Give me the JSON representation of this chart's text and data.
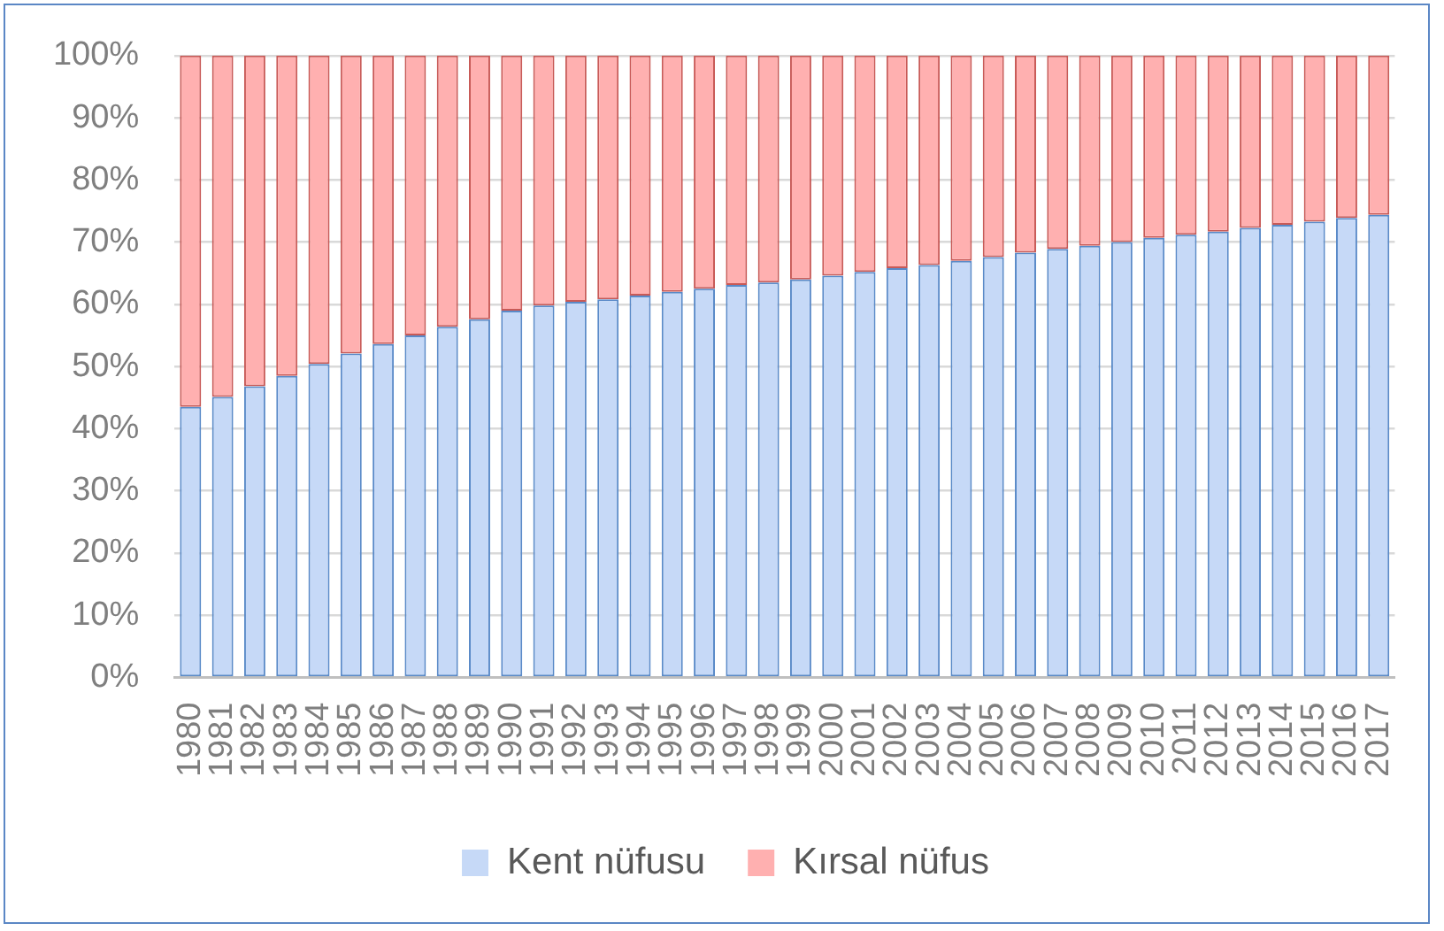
{
  "chart_data": {
    "type": "bar",
    "stacked": true,
    "categories": [
      "1980",
      "1981",
      "1982",
      "1983",
      "1984",
      "1985",
      "1986",
      "1987",
      "1988",
      "1989",
      "1990",
      "1991",
      "1992",
      "1993",
      "1994",
      "1995",
      "1996",
      "1997",
      "1998",
      "1999",
      "2000",
      "2001",
      "2002",
      "2003",
      "2004",
      "2005",
      "2006",
      "2007",
      "2008",
      "2009",
      "2010",
      "2011",
      "2012",
      "2013",
      "2014",
      "2015",
      "2016",
      "2017"
    ],
    "series": [
      {
        "name": "Kent nüfusu",
        "color": "#c6d9f7",
        "values": [
          43.5,
          45.1,
          46.8,
          48.5,
          50.4,
          52.1,
          53.6,
          55.0,
          56.4,
          57.6,
          59.0,
          59.8,
          60.4,
          60.8,
          61.4,
          62.0,
          62.5,
          63.1,
          63.5,
          64.0,
          64.6,
          65.2,
          65.8,
          66.3,
          67.0,
          67.6,
          68.3,
          68.9,
          69.4,
          70.0,
          70.7,
          71.2,
          71.7,
          72.3,
          72.8,
          73.3,
          73.9,
          74.4
        ]
      },
      {
        "name": "Kırsal nüfus",
        "color": "#ffb0b0",
        "values": [
          56.5,
          54.9,
          53.2,
          51.5,
          49.6,
          47.9,
          46.4,
          45.0,
          43.6,
          42.4,
          41.0,
          40.2,
          39.6,
          39.2,
          38.6,
          38.0,
          37.5,
          36.9,
          36.5,
          36.0,
          35.4,
          34.8,
          34.2,
          33.7,
          33.0,
          32.4,
          31.7,
          31.1,
          30.6,
          30.0,
          29.3,
          28.8,
          28.3,
          27.7,
          27.2,
          26.7,
          26.1,
          25.6
        ]
      }
    ],
    "ylim": [
      0,
      100
    ],
    "yticks": [
      {
        "value": 0,
        "label": "0%"
      },
      {
        "value": 10,
        "label": "10%"
      },
      {
        "value": 20,
        "label": "20%"
      },
      {
        "value": 30,
        "label": "30%"
      },
      {
        "value": 40,
        "label": "40%"
      },
      {
        "value": 50,
        "label": "50%"
      },
      {
        "value": 60,
        "label": "60%"
      },
      {
        "value": 70,
        "label": "70%"
      },
      {
        "value": 80,
        "label": "80%"
      },
      {
        "value": 90,
        "label": "90%"
      },
      {
        "value": 100,
        "label": "100%"
      }
    ],
    "grid": "y",
    "legend": "bottom"
  }
}
